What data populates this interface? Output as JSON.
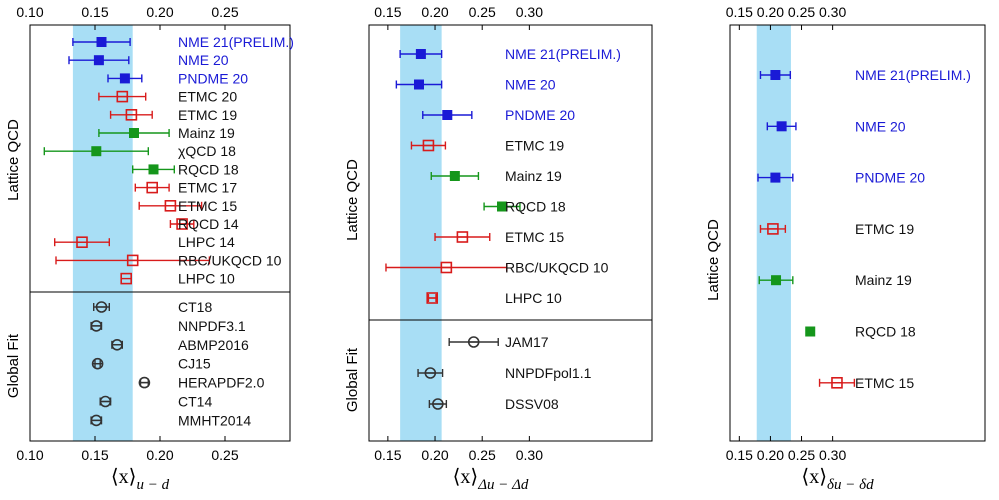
{
  "colors": {
    "band": "#a8def5",
    "nme": "#1a1ad6",
    "etmc": "#d81b1b",
    "mainz": "#15961b",
    "global": "#333333",
    "label_blue": "#1a1ad6",
    "label_black": "#111111"
  },
  "chart_data": [
    {
      "type": "scatter",
      "xlabel": "⟨x⟩u − d",
      "xlabel_main": "⟨x⟩",
      "xlabel_sub": "u − d",
      "xlim": [
        0.1,
        0.3
      ],
      "xticks": [
        0.1,
        0.15,
        0.2,
        0.25
      ],
      "xtick_labels": [
        "0.10",
        "0.15",
        "0.20",
        "0.25"
      ],
      "band": [
        0.133,
        0.179
      ],
      "groups": [
        "Lattice QCD",
        "Global Fit"
      ],
      "series": [
        {
          "label": "NME 21(PRELIM.)",
          "group": "Lattice QCD",
          "x": 0.155,
          "xerr": 0.022,
          "marker": "filled-square",
          "color": "nme",
          "label_color": "label_blue"
        },
        {
          "label": "NME 20",
          "group": "Lattice QCD",
          "x": 0.153,
          "xerr": 0.023,
          "marker": "filled-square",
          "color": "nme",
          "label_color": "label_blue"
        },
        {
          "label": "PNDME 20",
          "group": "Lattice QCD",
          "x": 0.173,
          "xerr": 0.013,
          "marker": "filled-square",
          "color": "nme",
          "label_color": "label_blue"
        },
        {
          "label": "ETMC 20",
          "group": "Lattice QCD",
          "x": 0.171,
          "xerr": 0.018,
          "marker": "open-square",
          "color": "etmc",
          "label_color": "label_black"
        },
        {
          "label": "ETMC 19",
          "group": "Lattice QCD",
          "x": 0.178,
          "xerr": 0.016,
          "marker": "open-square",
          "color": "etmc",
          "label_color": "label_black"
        },
        {
          "label": "Mainz 19",
          "group": "Lattice QCD",
          "x": 0.18,
          "xerr": 0.027,
          "marker": "filled-square",
          "color": "mainz",
          "label_color": "label_black"
        },
        {
          "label": "χQCD 18",
          "group": "Lattice QCD",
          "x": 0.151,
          "xerr": 0.04,
          "marker": "filled-square",
          "color": "mainz",
          "label_color": "label_black"
        },
        {
          "label": "RQCD 18",
          "group": "Lattice QCD",
          "x": 0.195,
          "xerr": 0.016,
          "marker": "filled-square",
          "color": "mainz",
          "label_color": "label_black"
        },
        {
          "label": "ETMC 17",
          "group": "Lattice QCD",
          "x": 0.194,
          "xerr": 0.013,
          "marker": "open-square",
          "color": "etmc",
          "label_color": "label_black"
        },
        {
          "label": "ETMC 15",
          "group": "Lattice QCD",
          "x": 0.208,
          "xerr": 0.024,
          "marker": "open-square",
          "color": "etmc",
          "label_color": "label_black"
        },
        {
          "label": "RQCD 14",
          "group": "Lattice QCD",
          "x": 0.217,
          "xerr": 0.009,
          "marker": "open-square",
          "color": "etmc",
          "label_color": "label_black"
        },
        {
          "label": "LHPC 14",
          "group": "Lattice QCD",
          "x": 0.14,
          "xerr": 0.021,
          "marker": "open-square",
          "color": "etmc",
          "label_color": "label_black"
        },
        {
          "label": "RBC/UKQCD 10",
          "group": "Lattice QCD",
          "x": 0.179,
          "xerr": 0.059,
          "marker": "open-square",
          "color": "etmc",
          "label_color": "label_black"
        },
        {
          "label": "LHPC 10",
          "group": "Lattice QCD",
          "x": 0.174,
          "xerr": 0.0,
          "marker": "open-square",
          "color": "etmc",
          "label_color": "label_black"
        },
        {
          "label": "CT18",
          "group": "Global Fit",
          "x": 0.155,
          "xerr": 0.006,
          "marker": "open-circle",
          "color": "global",
          "label_color": "label_black"
        },
        {
          "label": "NNPDF3.1",
          "group": "Global Fit",
          "x": 0.151,
          "xerr": 0.004,
          "marker": "open-circle",
          "color": "global",
          "label_color": "label_black"
        },
        {
          "label": "ABMP2016",
          "group": "Global Fit",
          "x": 0.167,
          "xerr": 0.004,
          "marker": "open-circle",
          "color": "global",
          "label_color": "label_black"
        },
        {
          "label": "CJ15",
          "group": "Global Fit",
          "x": 0.152,
          "xerr": 0.002,
          "marker": "open-circle",
          "color": "global",
          "label_color": "label_black"
        },
        {
          "label": "HERAPDF2.0",
          "group": "Global Fit",
          "x": 0.188,
          "xerr": 0.003,
          "marker": "open-circle",
          "color": "global",
          "label_color": "label_black"
        },
        {
          "label": "CT14",
          "group": "Global Fit",
          "x": 0.158,
          "xerr": 0.004,
          "marker": "open-circle",
          "color": "global",
          "label_color": "label_black"
        },
        {
          "label": "MMHT2014",
          "group": "Global Fit",
          "x": 0.151,
          "xerr": 0.004,
          "marker": "open-circle",
          "color": "global",
          "label_color": "label_black"
        }
      ]
    },
    {
      "type": "scatter",
      "xlabel": "⟨x⟩Δu − Δd",
      "xlabel_main": "⟨x⟩",
      "xlabel_sub": "Δu − Δd",
      "xlim": [
        0.13,
        0.43
      ],
      "xticks": [
        0.15,
        0.2,
        0.25,
        0.3
      ],
      "xtick_labels": [
        "0.15",
        "0.20",
        "0.25",
        "0.30"
      ],
      "band": [
        0.163,
        0.207
      ],
      "groups": [
        "Lattice QCD",
        "Global Fit"
      ],
      "series": [
        {
          "label": "NME 21(PRELIM.)",
          "group": "Lattice QCD",
          "x": 0.185,
          "xerr": 0.022,
          "marker": "filled-square",
          "color": "nme",
          "label_color": "label_blue"
        },
        {
          "label": "NME 20",
          "group": "Lattice QCD",
          "x": 0.183,
          "xerr": 0.024,
          "marker": "filled-square",
          "color": "nme",
          "label_color": "label_blue"
        },
        {
          "label": "PNDME 20",
          "group": "Lattice QCD",
          "x": 0.213,
          "xerr": 0.026,
          "marker": "filled-square",
          "color": "nme",
          "label_color": "label_blue"
        },
        {
          "label": "ETMC 19",
          "group": "Lattice QCD",
          "x": 0.193,
          "xerr": 0.018,
          "marker": "open-square",
          "color": "etmc",
          "label_color": "label_black"
        },
        {
          "label": "Mainz 19",
          "group": "Lattice QCD",
          "x": 0.221,
          "xerr": 0.025,
          "marker": "filled-square",
          "color": "mainz",
          "label_color": "label_black"
        },
        {
          "label": "RQCD 18",
          "group": "Lattice QCD",
          "x": 0.271,
          "xerr": 0.019,
          "marker": "filled-square",
          "color": "mainz",
          "label_color": "label_black"
        },
        {
          "label": "ETMC 15",
          "group": "Lattice QCD",
          "x": 0.229,
          "xerr": 0.029,
          "marker": "open-square",
          "color": "etmc",
          "label_color": "label_black"
        },
        {
          "label": "RBC/UKQCD 10",
          "group": "Lattice QCD",
          "x": 0.212,
          "xerr": 0.064,
          "marker": "open-square",
          "color": "etmc",
          "label_color": "label_black"
        },
        {
          "label": "LHPC 10",
          "group": "Lattice QCD",
          "x": 0.197,
          "xerr": 0.004,
          "marker": "open-square",
          "color": "etmc",
          "label_color": "label_black"
        },
        {
          "label": "JAM17",
          "group": "Global Fit",
          "x": 0.241,
          "xerr": 0.026,
          "marker": "open-circle",
          "color": "global",
          "label_color": "label_black"
        },
        {
          "label": "NNPDFpol1.1",
          "group": "Global Fit",
          "x": 0.195,
          "xerr": 0.013,
          "marker": "open-circle",
          "color": "global",
          "label_color": "label_black"
        },
        {
          "label": "DSSV08",
          "group": "Global Fit",
          "x": 0.203,
          "xerr": 0.009,
          "marker": "open-circle",
          "color": "global",
          "label_color": "label_black"
        }
      ]
    },
    {
      "type": "scatter",
      "xlabel": "⟨x⟩δu − δd",
      "xlabel_main": "⟨x⟩",
      "xlabel_sub": "δu − δd",
      "xlim": [
        0.135,
        0.545
      ],
      "xticks": [
        0.15,
        0.2,
        0.25,
        0.3
      ],
      "xtick_labels": [
        "0.15",
        "0.20",
        "0.25",
        "0.30"
      ],
      "band": [
        0.178,
        0.233
      ],
      "groups": [
        "Lattice QCD"
      ],
      "series": [
        {
          "label": "NME 21(PRELIM.)",
          "group": "Lattice QCD",
          "x": 0.208,
          "xerr": 0.024,
          "marker": "filled-square",
          "color": "nme",
          "label_color": "label_blue"
        },
        {
          "label": "NME 20",
          "group": "Lattice QCD",
          "x": 0.218,
          "xerr": 0.023,
          "marker": "filled-square",
          "color": "nme",
          "label_color": "label_blue"
        },
        {
          "label": "PNDME 20",
          "group": "Lattice QCD",
          "x": 0.208,
          "xerr": 0.028,
          "marker": "filled-square",
          "color": "nme",
          "label_color": "label_blue"
        },
        {
          "label": "ETMC 19",
          "group": "Lattice QCD",
          "x": 0.204,
          "xerr": 0.02,
          "marker": "open-square",
          "color": "etmc",
          "label_color": "label_black"
        },
        {
          "label": "Mainz 19",
          "group": "Lattice QCD",
          "x": 0.209,
          "xerr": 0.027,
          "marker": "filled-square",
          "color": "mainz",
          "label_color": "label_black"
        },
        {
          "label": "RQCD 18",
          "group": "Lattice QCD",
          "x": 0.264,
          "xerr": 0.004,
          "marker": "filled-square",
          "color": "mainz",
          "label_color": "label_black"
        },
        {
          "label": "ETMC 15",
          "group": "Lattice QCD",
          "x": 0.307,
          "xerr": 0.028,
          "marker": "open-square",
          "color": "etmc",
          "label_color": "label_black"
        }
      ]
    }
  ]
}
